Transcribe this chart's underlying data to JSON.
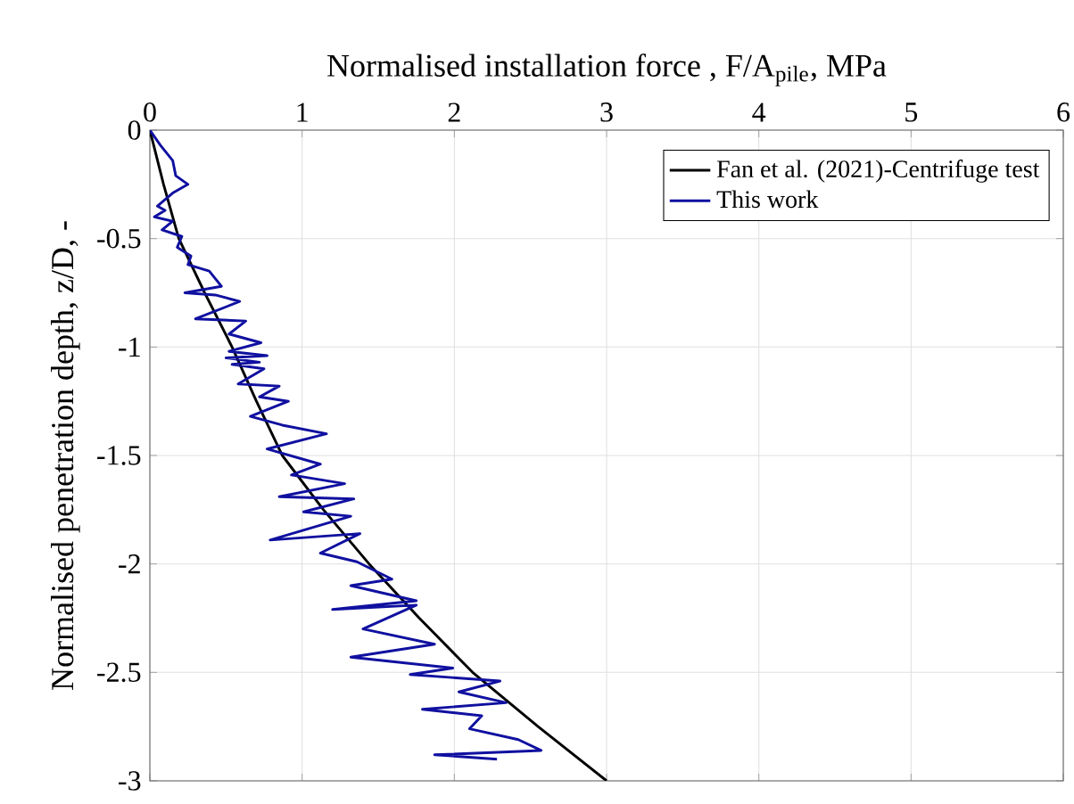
{
  "chart_data": {
    "type": "line",
    "xlabel": "Normalised installation force , F/A$_{pile}$, MPa",
    "ylabel": "Normalised penetration depth, z/D, -",
    "xlim": [
      0,
      6
    ],
    "xticks": [
      0,
      1,
      2,
      3,
      4,
      5,
      6
    ],
    "ylim": [
      -3,
      0
    ],
    "yticks": [
      -3,
      -2.5,
      -2,
      -1.5,
      -1,
      -0.5,
      0
    ],
    "grid": true,
    "legend": "top right",
    "marker": "none",
    "line_style": "solid",
    "series": [
      {
        "name": "Fan et al. (2021)-Centrifuge test",
        "color": "#000000",
        "x": [
          0,
          0.09,
          0.19,
          0.36,
          0.54,
          0.7,
          0.87,
          1.14,
          1.44,
          1.77,
          2.12,
          2.55,
          3.0
        ],
        "values": [
          0,
          -0.25,
          -0.5,
          -0.75,
          -1,
          -1.25,
          -1.5,
          -1.75,
          -2,
          -2.25,
          -2.5,
          -2.75,
          -3
        ]
      },
      {
        "name": "This work",
        "color": "#1010a0",
        "x": [
          0,
          0.07,
          0.15,
          0.17,
          0.25,
          0.15,
          0.05,
          0.1,
          0.03,
          0.15,
          0.08,
          0.21,
          0.18,
          0.27,
          0.25,
          0.39,
          0.47,
          0.23,
          0.43,
          0.59,
          0.3,
          0.63,
          0.52,
          0.73,
          0.52,
          0.77,
          0.5,
          0.72,
          0.54,
          0.75,
          0.58,
          0.85,
          0.72,
          0.91,
          0.66,
          0.87,
          1.16,
          0.77,
          1.12,
          0.93,
          1.28,
          0.85,
          1.34,
          1.01,
          1.32,
          0.79,
          1.38,
          1.12,
          1.36,
          1.59,
          1.32,
          1.75,
          1.2,
          1.75,
          1.4,
          1.87,
          1.32,
          1.99,
          1.71,
          2.3,
          2.03,
          2.34,
          1.79,
          2.18,
          2.1,
          2.42,
          2.57,
          1.87,
          2.28
        ],
        "values": [
          0,
          -0.07,
          -0.14,
          -0.21,
          -0.25,
          -0.29,
          -0.35,
          -0.37,
          -0.4,
          -0.42,
          -0.46,
          -0.49,
          -0.54,
          -0.58,
          -0.62,
          -0.65,
          -0.72,
          -0.75,
          -0.76,
          -0.79,
          -0.87,
          -0.88,
          -0.94,
          -0.98,
          -1.02,
          -1.04,
          -1.05,
          -1.07,
          -1.08,
          -1.1,
          -1.17,
          -1.18,
          -1.23,
          -1.25,
          -1.32,
          -1.36,
          -1.4,
          -1.47,
          -1.54,
          -1.59,
          -1.63,
          -1.69,
          -1.7,
          -1.76,
          -1.78,
          -1.89,
          -1.86,
          -1.95,
          -1.99,
          -2.07,
          -2.1,
          -2.17,
          -2.21,
          -2.19,
          -2.3,
          -2.37,
          -2.43,
          -2.48,
          -2.51,
          -2.54,
          -2.59,
          -2.64,
          -2.67,
          -2.7,
          -2.76,
          -2.81,
          -2.86,
          -2.88,
          -2.9
        ]
      }
    ]
  }
}
